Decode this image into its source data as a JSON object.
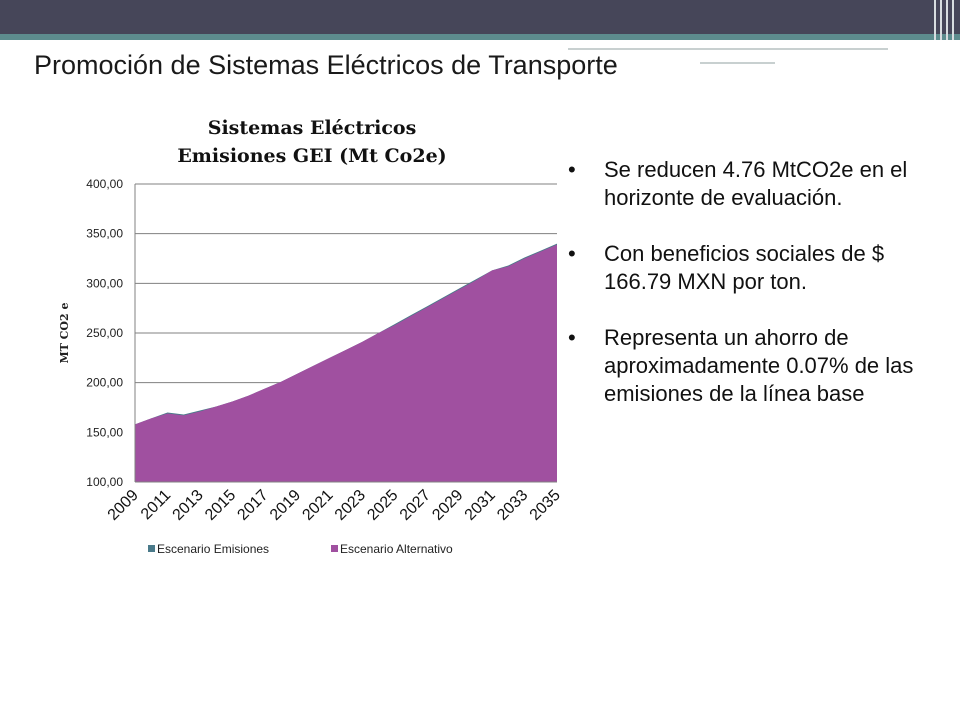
{
  "slide": {
    "title": "Promoción de Sistemas Eléctricos de Transporte",
    "colors": {
      "topbar": "#464659",
      "stripe": "#5d8c8e",
      "series_alt": "#a050a0",
      "series_emis": "#4a7a8a"
    }
  },
  "bullets": [
    {
      "text": "Se reducen 4.76 MtCO2e en el horizonte de evaluación."
    },
    {
      "text": "Con beneficios sociales de $ 166.79 MXN por ton."
    },
    {
      "text": "Representa un ahorro de aproximadamente  0.07% de las emisiones de la línea base"
    }
  ],
  "chart_data": {
    "type": "area",
    "title_line1": "Sistemas Eléctricos",
    "title_line2": "Emisiones GEI (Mt Co2e)",
    "ylabel": "MT CO2 e",
    "ylim": [
      100,
      400
    ],
    "y_ticks": [
      "400,00",
      "350,00",
      "300,00",
      "250,00",
      "200,00",
      "150,00",
      "100,00"
    ],
    "y_tick_values": [
      400,
      350,
      300,
      250,
      200,
      150,
      100
    ],
    "x": [
      2009,
      2010,
      2011,
      2012,
      2013,
      2014,
      2015,
      2016,
      2017,
      2018,
      2019,
      2020,
      2021,
      2022,
      2023,
      2024,
      2025,
      2026,
      2027,
      2028,
      2029,
      2030,
      2031,
      2032,
      2033,
      2034,
      2035
    ],
    "x_tick_labels": [
      "2009",
      "2011",
      "2013",
      "2015",
      "2017",
      "2019",
      "2021",
      "2023",
      "2025",
      "2027",
      "2029",
      "2031",
      "2033",
      "2035"
    ],
    "grid": true,
    "legend_position": "bottom",
    "series": [
      {
        "name": "Escenario Emisiones",
        "values": [
          158,
          164,
          170,
          168,
          172,
          176,
          181,
          187,
          194,
          201,
          209,
          217,
          225,
          233,
          241,
          250,
          259,
          268,
          277,
          286,
          295,
          304,
          313,
          318,
          326,
          333,
          340
        ]
      },
      {
        "name": "Escenario Alternativo",
        "values": [
          158,
          164,
          169,
          167,
          171,
          176,
          181,
          187,
          194,
          201,
          209,
          217,
          225,
          233,
          241,
          250,
          258,
          267,
          276,
          285,
          294,
          303,
          313,
          317,
          325,
          332,
          339
        ]
      }
    ]
  }
}
